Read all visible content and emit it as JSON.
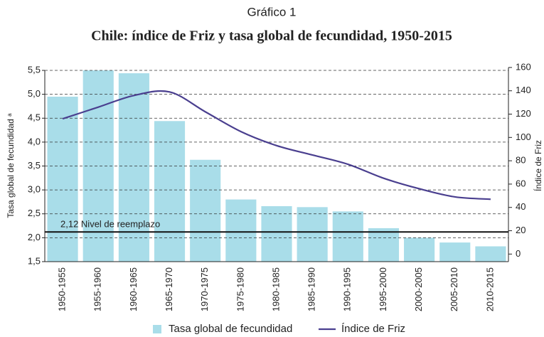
{
  "chart_data": {
    "type": "bar-line",
    "subtitle": "Gráfico 1",
    "title": "Chile: índice de Friz y tasa global de fecundidad, 1950-2015",
    "categories": [
      "1950-1955",
      "1955-1960",
      "1960-1965",
      "1965-1970",
      "1970-1975",
      "1975-1980",
      "1980-1985",
      "1985-1990",
      "1990-1995",
      "1995-2000",
      "2000-2005",
      "2005-2010",
      "2010-2015"
    ],
    "series": [
      {
        "name": "Tasa global de fecundidad",
        "color": "#a9dde9",
        "kind": "bar",
        "values": [
          4.95,
          5.5,
          5.44,
          4.44,
          3.63,
          2.8,
          2.66,
          2.64,
          2.55,
          2.2,
          2.0,
          1.9,
          1.82
        ]
      },
      {
        "name": "Índice de Friz",
        "color": "#4a3f8f",
        "kind": "line",
        "axis": "y2",
        "values": [
          116,
          126,
          136,
          139,
          122,
          105,
          93,
          85,
          77,
          65,
          56,
          49,
          47
        ]
      }
    ],
    "ylabel": "Tasa global de fecundidad ᵃ",
    "y2label": "Índice de Friz",
    "ylim": [
      1.5,
      5.5
    ],
    "yticks": [
      {
        "value": 1.5,
        "label": "1,5"
      },
      {
        "value": 2.0,
        "label": "2,0"
      },
      {
        "value": 2.5,
        "label": "2,5"
      },
      {
        "value": 3.0,
        "label": "3,0"
      },
      {
        "value": 3.5,
        "label": "3,5"
      },
      {
        "value": 4.0,
        "label": "4,0"
      },
      {
        "value": 4.5,
        "label": "4,5"
      },
      {
        "value": 5.0,
        "label": "5,0"
      },
      {
        "value": 5.5,
        "label": "5,5"
      }
    ],
    "y2lim": [
      -6.5,
      157.5
    ],
    "y2ticks": [
      0,
      20,
      40,
      60,
      80,
      100,
      120,
      140,
      160
    ],
    "reference": {
      "value": 2.12,
      "label": "2,12 Nivel de reemplazo"
    },
    "grid": true
  }
}
